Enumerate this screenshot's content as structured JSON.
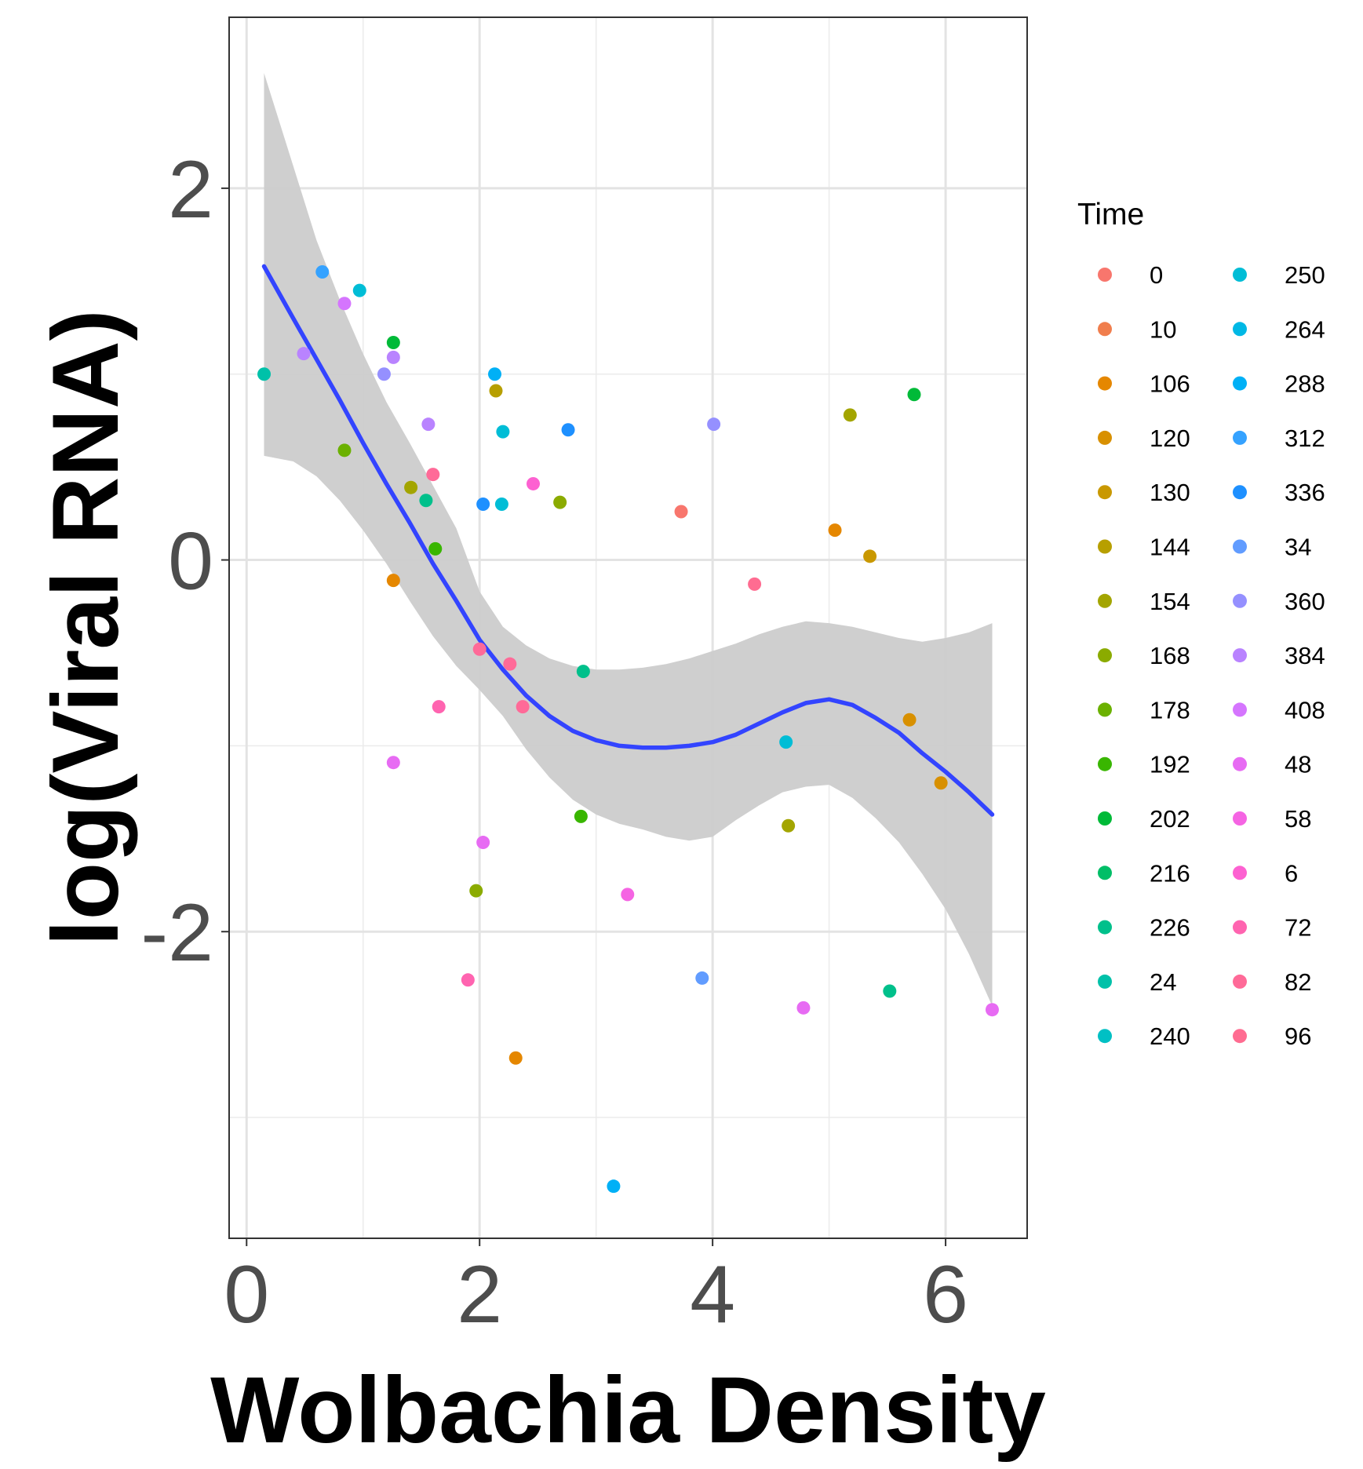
{
  "chart_data": {
    "type": "scatter",
    "xlabel": "Wolbachia Density",
    "ylabel": "log(Viral RNA)",
    "xlim": [
      -0.15,
      6.7
    ],
    "ylim": [
      -3.65,
      2.92
    ],
    "x_ticks": [
      0,
      2,
      4,
      6
    ],
    "y_ticks": [
      -2,
      0,
      2
    ],
    "x_minor": [
      1,
      3,
      5
    ],
    "y_minor": [
      -3,
      -1,
      1
    ],
    "grid": true,
    "legend": {
      "title": "Time",
      "position": "right",
      "columns": 2,
      "entries": [
        {
          "label": "0",
          "color": "#F8766D"
        },
        {
          "label": "10",
          "color": "#F07E4D"
        },
        {
          "label": "106",
          "color": "#E58700"
        },
        {
          "label": "120",
          "color": "#D89000"
        },
        {
          "label": "130",
          "color": "#C99800"
        },
        {
          "label": "144",
          "color": "#B79F00"
        },
        {
          "label": "154",
          "color": "#A3A500"
        },
        {
          "label": "168",
          "color": "#8BAB00"
        },
        {
          "label": "178",
          "color": "#6BB100"
        },
        {
          "label": "192",
          "color": "#39B600"
        },
        {
          "label": "202",
          "color": "#00BA38"
        },
        {
          "label": "216",
          "color": "#00BE67"
        },
        {
          "label": "226",
          "color": "#00C08B"
        },
        {
          "label": "24",
          "color": "#00C1A9"
        },
        {
          "label": "240",
          "color": "#00C0C4"
        },
        {
          "label": "250",
          "color": "#00BDD6"
        },
        {
          "label": "264",
          "color": "#00B8E5"
        },
        {
          "label": "288",
          "color": "#00B0F6"
        },
        {
          "label": "312",
          "color": "#35A2FF"
        },
        {
          "label": "336",
          "color": "#1E90FF"
        },
        {
          "label": "34",
          "color": "#619CFF"
        },
        {
          "label": "360",
          "color": "#9590FF"
        },
        {
          "label": "384",
          "color": "#B983FF"
        },
        {
          "label": "408",
          "color": "#D575FE"
        },
        {
          "label": "48",
          "color": "#E76BF3"
        },
        {
          "label": "58",
          "color": "#F564E3"
        },
        {
          "label": "6",
          "color": "#FD61D1"
        },
        {
          "label": "72",
          "color": "#FF64B0"
        },
        {
          "label": "82",
          "color": "#FF6A98"
        },
        {
          "label": "96",
          "color": "#FF6C91"
        }
      ]
    },
    "points": [
      {
        "x": 0.15,
        "y": 1.0,
        "color": "#00C1A9"
      },
      {
        "x": 0.49,
        "y": 1.11,
        "color": "#B983FF"
      },
      {
        "x": 0.65,
        "y": 1.55,
        "color": "#35A2FF"
      },
      {
        "x": 0.84,
        "y": 1.38,
        "color": "#D575FE"
      },
      {
        "x": 0.97,
        "y": 1.45,
        "color": "#00BDD6"
      },
      {
        "x": 0.84,
        "y": 0.59,
        "color": "#6BB100"
      },
      {
        "x": 1.18,
        "y": 1.0,
        "color": "#9590FF"
      },
      {
        "x": 1.26,
        "y": 1.17,
        "color": "#00BA38"
      },
      {
        "x": 1.26,
        "y": 1.09,
        "color": "#B983FF"
      },
      {
        "x": 1.26,
        "y": -0.11,
        "color": "#E58700"
      },
      {
        "x": 1.26,
        "y": -1.09,
        "color": "#E76BF3"
      },
      {
        "x": 1.41,
        "y": 0.39,
        "color": "#A3A500"
      },
      {
        "x": 1.54,
        "y": 0.32,
        "color": "#00C08B"
      },
      {
        "x": 1.56,
        "y": 0.73,
        "color": "#B983FF"
      },
      {
        "x": 1.6,
        "y": 0.46,
        "color": "#FF6A98"
      },
      {
        "x": 1.62,
        "y": 0.06,
        "color": "#39B600"
      },
      {
        "x": 1.65,
        "y": -0.79,
        "color": "#FF64B0"
      },
      {
        "x": 1.9,
        "y": -2.26,
        "color": "#FF64B0"
      },
      {
        "x": 1.97,
        "y": -1.78,
        "color": "#8BAB00"
      },
      {
        "x": 2.0,
        "y": -0.48,
        "color": "#FF6A98"
      },
      {
        "x": 2.03,
        "y": -1.52,
        "color": "#E76BF3"
      },
      {
        "x": 2.03,
        "y": 0.3,
        "color": "#1E90FF"
      },
      {
        "x": 2.13,
        "y": 1.0,
        "color": "#00B0F6"
      },
      {
        "x": 2.14,
        "y": 0.91,
        "color": "#B79F00"
      },
      {
        "x": 2.19,
        "y": 0.3,
        "color": "#00BDD6"
      },
      {
        "x": 2.2,
        "y": 0.69,
        "color": "#00BDD6"
      },
      {
        "x": 2.26,
        "y": -0.56,
        "color": "#FF6A98"
      },
      {
        "x": 2.31,
        "y": -2.68,
        "color": "#E58700"
      },
      {
        "x": 2.37,
        "y": -0.79,
        "color": "#FF6A98"
      },
      {
        "x": 2.46,
        "y": 0.41,
        "color": "#FD61D1"
      },
      {
        "x": 2.69,
        "y": 0.31,
        "color": "#8BAB00"
      },
      {
        "x": 2.76,
        "y": 0.7,
        "color": "#1E90FF"
      },
      {
        "x": 2.87,
        "y": -1.38,
        "color": "#39B600"
      },
      {
        "x": 2.89,
        "y": -0.6,
        "color": "#00C08B"
      },
      {
        "x": 3.15,
        "y": -3.37,
        "color": "#00B0F6"
      },
      {
        "x": 3.27,
        "y": -1.8,
        "color": "#F564E3"
      },
      {
        "x": 3.73,
        "y": 0.26,
        "color": "#F8766D"
      },
      {
        "x": 3.91,
        "y": -2.25,
        "color": "#619CFF"
      },
      {
        "x": 4.01,
        "y": 0.73,
        "color": "#9590FF"
      },
      {
        "x": 4.36,
        "y": -0.13,
        "color": "#FF6C91"
      },
      {
        "x": 4.63,
        "y": -0.98,
        "color": "#00BDD6"
      },
      {
        "x": 4.65,
        "y": -1.43,
        "color": "#A3A500"
      },
      {
        "x": 4.78,
        "y": -2.41,
        "color": "#E76BF3"
      },
      {
        "x": 5.05,
        "y": 0.16,
        "color": "#E58700"
      },
      {
        "x": 5.18,
        "y": 0.78,
        "color": "#A3A500"
      },
      {
        "x": 5.35,
        "y": 0.02,
        "color": "#C99800"
      },
      {
        "x": 5.52,
        "y": -2.32,
        "color": "#00C08B"
      },
      {
        "x": 5.69,
        "y": -0.86,
        "color": "#D89000"
      },
      {
        "x": 5.73,
        "y": 0.89,
        "color": "#00BA38"
      },
      {
        "x": 5.96,
        "y": -1.2,
        "color": "#D89000"
      },
      {
        "x": 6.4,
        "y": -2.42,
        "color": "#E76BF3"
      }
    ],
    "smooth": {
      "color": "#3344FF",
      "band_color": "#cccccc",
      "x": [
        0.15,
        0.4,
        0.6,
        0.8,
        1.0,
        1.2,
        1.4,
        1.6,
        1.8,
        2.0,
        2.2,
        2.4,
        2.6,
        2.8,
        3.0,
        3.2,
        3.4,
        3.6,
        3.8,
        4.0,
        4.2,
        4.4,
        4.6,
        4.8,
        5.0,
        5.2,
        5.4,
        5.6,
        5.8,
        6.0,
        6.2,
        6.4
      ],
      "y": [
        1.58,
        1.3,
        1.08,
        0.86,
        0.63,
        0.41,
        0.2,
        -0.02,
        -0.22,
        -0.43,
        -0.59,
        -0.73,
        -0.84,
        -0.92,
        -0.97,
        -1.0,
        -1.01,
        -1.01,
        -1.0,
        -0.98,
        -0.94,
        -0.88,
        -0.82,
        -0.77,
        -0.75,
        -0.78,
        -0.85,
        -0.93,
        -1.04,
        -1.14,
        -1.25,
        -1.37
      ],
      "lower": [
        0.56,
        0.53,
        0.45,
        0.32,
        0.16,
        -0.02,
        -0.22,
        -0.41,
        -0.57,
        -0.7,
        -0.84,
        -1.02,
        -1.17,
        -1.29,
        -1.37,
        -1.42,
        -1.45,
        -1.49,
        -1.51,
        -1.49,
        -1.4,
        -1.32,
        -1.25,
        -1.22,
        -1.21,
        -1.28,
        -1.39,
        -1.52,
        -1.69,
        -1.88,
        -2.12,
        -2.4
      ],
      "upper": [
        2.62,
        2.12,
        1.72,
        1.4,
        1.11,
        0.85,
        0.63,
        0.4,
        0.17,
        -0.17,
        -0.36,
        -0.46,
        -0.53,
        -0.57,
        -0.59,
        -0.59,
        -0.58,
        -0.56,
        -0.53,
        -0.49,
        -0.45,
        -0.4,
        -0.36,
        -0.33,
        -0.34,
        -0.36,
        -0.39,
        -0.42,
        -0.44,
        -0.42,
        -0.39,
        -0.34
      ]
    }
  }
}
